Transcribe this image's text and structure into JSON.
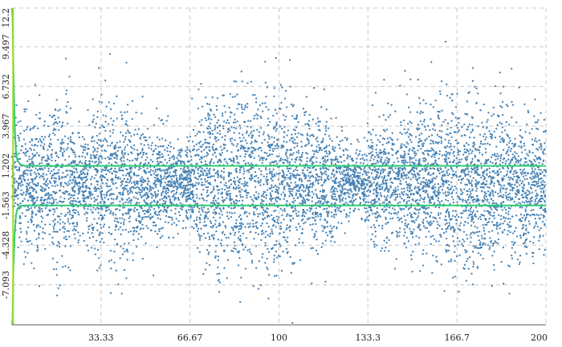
{
  "chart_data": {
    "type": "scatter",
    "title": "",
    "xlabel": "",
    "ylabel": "",
    "xlim": [
      0,
      200
    ],
    "ylim": [
      -9.858,
      12.2
    ],
    "x_ticks": [
      33.33,
      66.67,
      100,
      133.3,
      166.7,
      200
    ],
    "x_tick_labels": [
      "33.33",
      "66.67",
      "100",
      "133.3",
      "166.7",
      "200"
    ],
    "y_ticks": [
      12.2,
      9.497,
      6.732,
      3.967,
      1.202,
      -1.563,
      -4.328,
      -7.093
    ],
    "y_tick_labels": [
      "12.2",
      "9.497",
      "6.732",
      "3.967",
      "1.202",
      "-1.563",
      "-4.328",
      "-7.093"
    ],
    "grid": true,
    "legend": "none",
    "series": [
      {
        "type": "scatter",
        "color": "#4682b4",
        "note_points": "dense noise cloud; envelope of |y| vs x listed below",
        "envelope_x": [
          0,
          2,
          4,
          6,
          8,
          10,
          13,
          16,
          20,
          23,
          27,
          30,
          35,
          40,
          45,
          50,
          55,
          60,
          65,
          70,
          75,
          80,
          85,
          90,
          95,
          100,
          105,
          110,
          115,
          120,
          125,
          130,
          135,
          140,
          145,
          150,
          155,
          160,
          165,
          170,
          175,
          180,
          185,
          190,
          195,
          200
        ],
        "envelope_y": [
          4.5,
          5.5,
          4.0,
          6.0,
          5.0,
          6.5,
          4.5,
          7.0,
          7.5,
          5.0,
          4.0,
          5.5,
          6.5,
          6.8,
          6.0,
          5.0,
          4.8,
          3.5,
          2.5,
          5.5,
          7.0,
          6.8,
          6.8,
          7.0,
          7.5,
          7.5,
          6.5,
          5.5,
          6.2,
          5.0,
          3.5,
          2.8,
          5.0,
          5.5,
          5.5,
          5.5,
          6.0,
          6.5,
          7.0,
          7.5,
          7.0,
          6.5,
          6.5,
          6.0,
          5.5,
          5.0
        ]
      },
      {
        "type": "line",
        "color": "#2ecc71",
        "x": [
          0,
          0.2,
          0.5,
          1,
          1.5,
          2,
          3,
          5,
          10,
          20,
          50,
          100,
          150,
          200
        ],
        "y": [
          12.2,
          11.5,
          8.0,
          4.0,
          2.0,
          1.6,
          1.3,
          1.2,
          1.2,
          1.2,
          1.2,
          1.2,
          1.2,
          1.2
        ]
      },
      {
        "type": "line",
        "color": "#2ecc71",
        "x": [
          0,
          0.2,
          0.5,
          1,
          1.5,
          2,
          3,
          5,
          10,
          20,
          50,
          100,
          150,
          200
        ],
        "y": [
          -9.858,
          -9.5,
          -6.0,
          -3.5,
          -2.2,
          -1.8,
          -1.6,
          -1.563,
          -1.563,
          -1.563,
          -1.563,
          -1.563,
          -1.563,
          -1.563
        ]
      },
      {
        "type": "line",
        "color": "#a3d926",
        "x": [
          0.4,
          0.4
        ],
        "y": [
          12.2,
          -9.858
        ]
      }
    ]
  }
}
